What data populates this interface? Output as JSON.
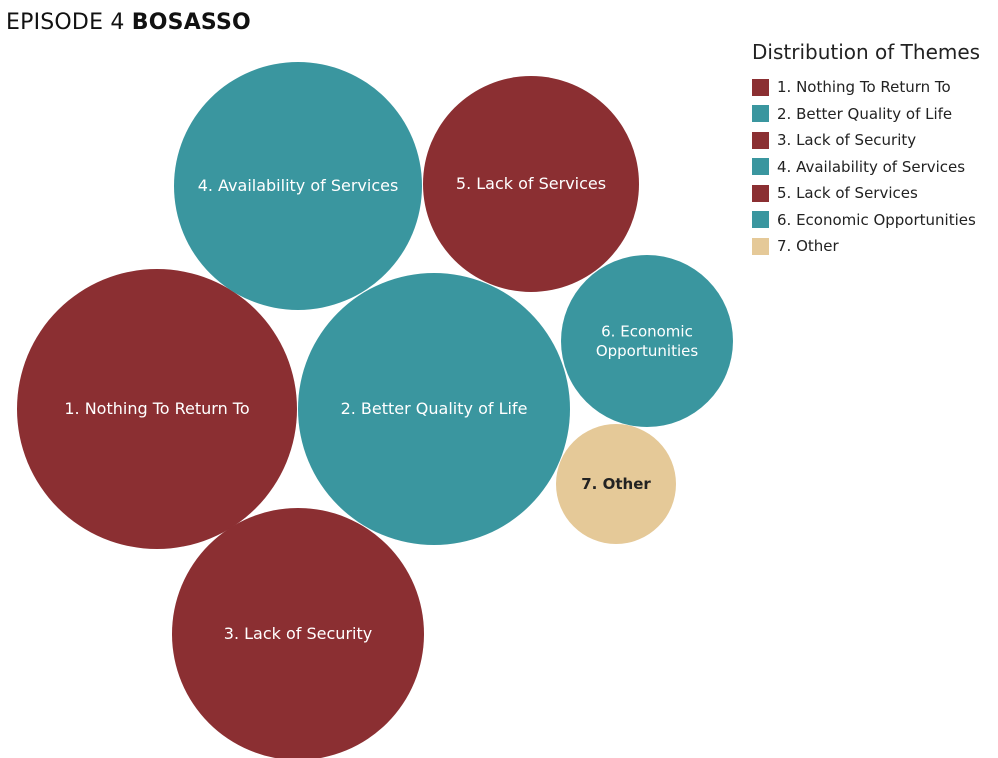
{
  "header": {
    "episode_label": "EPISODE 4",
    "episode_name": "BOSASSO"
  },
  "colors": {
    "red": "#8b2f32",
    "teal": "#3a969f",
    "tan": "#e5c998"
  },
  "chart_data": {
    "type": "bubble",
    "legend_title": "Distribution of Themes",
    "legend_position": "top-right",
    "bubbles": [
      {
        "label": "1. Nothing To Return To",
        "legend": "1. Nothing To Return To",
        "color": "#8b2f32",
        "relative_size": 1.0
      },
      {
        "label": "2. Better Quality of Life",
        "legend": "2. Better Quality of Life",
        "color": "#3a969f",
        "relative_size": 0.97
      },
      {
        "label": "3. Lack of Security",
        "legend": "3. Lack of Security",
        "color": "#8b2f32",
        "relative_size": 0.79
      },
      {
        "label": "4. Availability of Services",
        "legend": "4. Availability of Services",
        "color": "#3a969f",
        "relative_size": 0.78
      },
      {
        "label": "5. Lack of Services",
        "legend": "5. Lack of Services",
        "color": "#8b2f32",
        "relative_size": 0.6
      },
      {
        "label": "6. Economic\nOpportunities",
        "legend": "6. Economic Opportunities",
        "color": "#3a969f",
        "relative_size": 0.37
      },
      {
        "label": "7. Other",
        "legend": "7. Other",
        "color": "#e5c998",
        "relative_size": 0.18
      }
    ]
  }
}
